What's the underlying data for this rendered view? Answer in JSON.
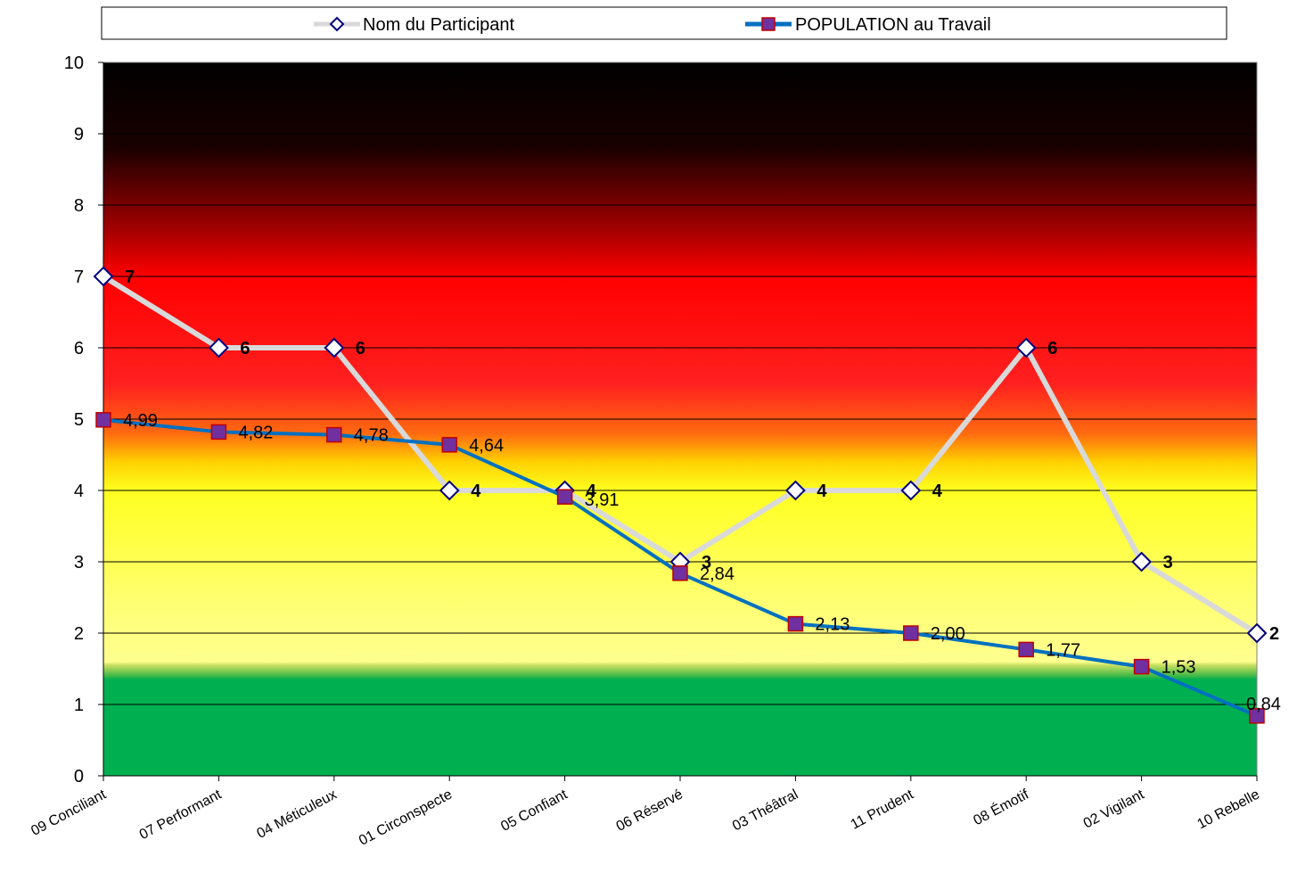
{
  "chart_data": {
    "type": "line",
    "categories": [
      "09 Conciliant",
      "07 Performant",
      "04 Méticuleux",
      "01 Circonspecte",
      "05 Confiant",
      "06 Réservé",
      "03 Théâtral",
      "11 Prudent",
      "08 Émotif",
      "02 Vigilant",
      "10 Rebelle"
    ],
    "series": [
      {
        "name": "Nom du Participant",
        "values": [
          7,
          6,
          6,
          4,
          4,
          3,
          4,
          4,
          6,
          3,
          2
        ],
        "labels": [
          "7",
          "6",
          "6",
          "4",
          "4",
          "3",
          "4",
          "4",
          "6",
          "3",
          "2"
        ],
        "line_color": "#d9d9d9",
        "marker": "diamond",
        "marker_fill": "#ffffff",
        "marker_stroke": "#000080"
      },
      {
        "name": "POPULATION au Travail",
        "values": [
          4.99,
          4.82,
          4.78,
          4.64,
          3.91,
          2.84,
          2.13,
          2.0,
          1.77,
          1.53,
          0.84
        ],
        "labels": [
          "4,99",
          "4,82",
          "4,78",
          "4,64",
          "3,91",
          "2,84",
          "2,13",
          "2,00",
          "1,77",
          "1,53",
          "0,84"
        ],
        "line_color": "#0070c0",
        "marker": "square",
        "marker_fill": "#7030a0",
        "marker_stroke": "#c00000"
      }
    ],
    "ylim": [
      0,
      10
    ],
    "yticks": [
      "0",
      "1",
      "2",
      "3",
      "4",
      "5",
      "6",
      "7",
      "8",
      "9",
      "10"
    ],
    "grid": true,
    "legend_position": "top",
    "background_zones": [
      {
        "from": 0,
        "to": 1.35,
        "color": "#00b050"
      },
      {
        "from": 1.35,
        "to": 4.3,
        "color": "#ffff00"
      },
      {
        "from": 4.3,
        "to": 8.5,
        "color": "#ff0000"
      },
      {
        "from": 8.5,
        "to": 10,
        "color": "#000000"
      }
    ]
  }
}
